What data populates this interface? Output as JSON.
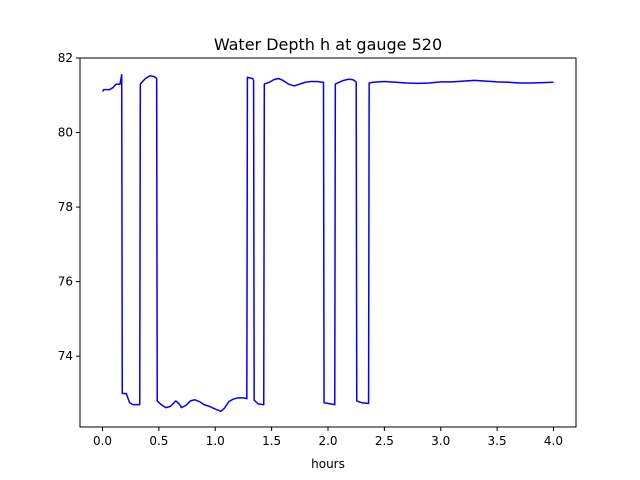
{
  "chart_data": {
    "type": "line",
    "title": "Water Depth h at gauge 520",
    "xlabel": "hours",
    "ylabel": "",
    "xlim": [
      -0.2,
      4.2
    ],
    "ylim": [
      72.1,
      82.0
    ],
    "xticks": [
      0.0,
      0.5,
      1.0,
      1.5,
      2.0,
      2.5,
      3.0,
      3.5,
      4.0
    ],
    "xtick_labels": [
      "0.0",
      "0.5",
      "1.0",
      "1.5",
      "2.0",
      "2.5",
      "3.0",
      "3.5",
      "4.0"
    ],
    "yticks": [
      74,
      76,
      78,
      80,
      82
    ],
    "ytick_labels": [
      "74",
      "76",
      "78",
      "80",
      "82"
    ],
    "grid": false,
    "legend": "none",
    "series": [
      {
        "color": "#0000ff",
        "x": [
          0.0,
          0.01,
          0.06,
          0.09,
          0.12,
          0.155,
          0.17,
          0.175,
          0.21,
          0.24,
          0.27,
          0.33,
          0.335,
          0.38,
          0.42,
          0.46,
          0.48,
          0.485,
          0.52,
          0.56,
          0.6,
          0.65,
          0.68,
          0.7,
          0.74,
          0.78,
          0.82,
          0.86,
          0.9,
          0.95,
          1.0,
          1.05,
          1.08,
          1.12,
          1.16,
          1.2,
          1.25,
          1.28,
          1.285,
          1.33,
          1.34,
          1.345,
          1.38,
          1.42,
          1.43,
          1.435,
          1.48,
          1.52,
          1.56,
          1.6,
          1.65,
          1.7,
          1.75,
          1.8,
          1.85,
          1.9,
          1.95,
          1.96,
          1.965,
          2.06,
          2.065,
          2.1,
          2.14,
          2.18,
          2.22,
          2.24,
          2.25,
          2.255,
          2.3,
          2.36,
          2.365,
          2.4,
          2.5,
          2.6,
          2.7,
          2.8,
          2.9,
          3.0,
          3.1,
          3.2,
          3.3,
          3.4,
          3.5,
          3.6,
          3.7,
          3.8,
          3.9,
          4.0
        ],
        "values": [
          81.1,
          81.15,
          81.15,
          81.2,
          81.3,
          81.3,
          81.55,
          73.0,
          73.0,
          72.75,
          72.7,
          72.7,
          81.3,
          81.45,
          81.52,
          81.5,
          81.45,
          72.8,
          72.7,
          72.62,
          72.65,
          72.8,
          72.72,
          72.62,
          72.68,
          72.8,
          72.83,
          72.78,
          72.7,
          72.65,
          72.58,
          72.52,
          72.6,
          72.78,
          72.85,
          72.88,
          72.88,
          72.86,
          81.48,
          81.45,
          81.4,
          72.82,
          72.72,
          72.7,
          72.7,
          81.3,
          81.35,
          81.42,
          81.45,
          81.4,
          81.3,
          81.25,
          81.3,
          81.35,
          81.37,
          81.37,
          81.35,
          81.35,
          72.75,
          72.7,
          81.3,
          81.35,
          81.4,
          81.43,
          81.42,
          81.38,
          81.35,
          72.8,
          72.75,
          72.73,
          81.33,
          81.35,
          81.37,
          81.35,
          81.33,
          81.32,
          81.33,
          81.36,
          81.36,
          81.38,
          81.4,
          81.38,
          81.36,
          81.35,
          81.33,
          81.33,
          81.34,
          81.35
        ]
      }
    ]
  }
}
